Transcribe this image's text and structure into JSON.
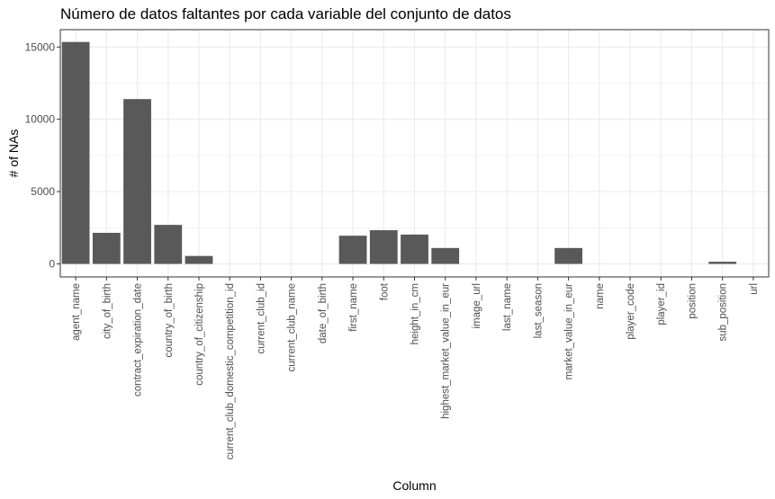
{
  "chart_data": {
    "type": "bar",
    "title": "Número de datos faltantes por cada variable del conjunto de datos",
    "xlabel": "Column",
    "ylabel": "# of NAs",
    "categories": [
      "agent_name",
      "city_of_birth",
      "contract_expiration_date",
      "country_of_birth",
      "country_of_citizenship",
      "current_club_domestic_competition_id",
      "current_club_id",
      "current_club_name",
      "date_of_birth",
      "first_name",
      "foot",
      "height_in_cm",
      "highest_market_value_in_eur",
      "image_url",
      "last_name",
      "last_season",
      "market_value_in_eur",
      "name",
      "player_code",
      "player_id",
      "position",
      "sub_position",
      "url"
    ],
    "values": [
      15350,
      2150,
      11400,
      2700,
      550,
      0,
      0,
      0,
      0,
      1950,
      2330,
      2030,
      1100,
      0,
      0,
      0,
      1100,
      0,
      0,
      0,
      0,
      150,
      0
    ],
    "ylim": [
      -900,
      16200
    ],
    "yticks": [
      0,
      5000,
      10000,
      15000
    ],
    "ytick_labels": [
      "0",
      "5000",
      "10000",
      "15000"
    ],
    "grid": true,
    "bar_color": "#595959",
    "grid_color": "#ebebeb",
    "panel_border_color": "#333333"
  }
}
